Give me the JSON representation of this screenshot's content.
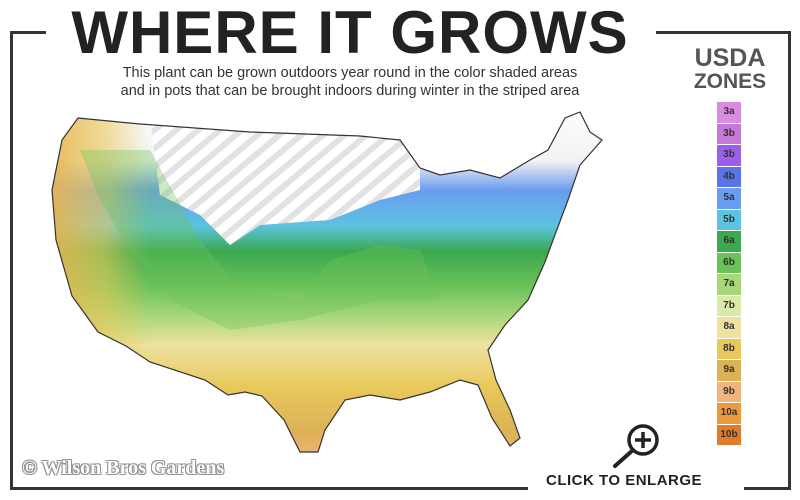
{
  "header": {
    "title": "WHERE IT GROWS",
    "subtitle_line1": "This plant can be grown outdoors year round in the color shaded areas",
    "subtitle_line2": "and in pots that can be brought indoors during winter in the striped area"
  },
  "legend": {
    "title_line1": "USDA",
    "title_line2": "ZONES",
    "zones": [
      {
        "label": "3a",
        "color": "#d98be0"
      },
      {
        "label": "3b",
        "color": "#c47ad6"
      },
      {
        "label": "3b",
        "color": "#9b60e8"
      },
      {
        "label": "4b",
        "color": "#5a73e6"
      },
      {
        "label": "5a",
        "color": "#6a9cf0"
      },
      {
        "label": "5b",
        "color": "#5cc3e0"
      },
      {
        "label": "6a",
        "color": "#3aa84e"
      },
      {
        "label": "6b",
        "color": "#6cc25a"
      },
      {
        "label": "7a",
        "color": "#a8d77a"
      },
      {
        "label": "7b",
        "color": "#dbeaa8"
      },
      {
        "label": "8a",
        "color": "#ede2a0"
      },
      {
        "label": "8b",
        "color": "#e8c85a"
      },
      {
        "label": "9a",
        "color": "#dcb256"
      },
      {
        "label": "9b",
        "color": "#f0b47c"
      },
      {
        "label": "10a",
        "color": "#ec9a3c"
      },
      {
        "label": "10b",
        "color": "#e07c2c"
      }
    ]
  },
  "watermark": "© Wilson Bros Gardens",
  "enlarge": {
    "label": "CLICK TO ENLARGE",
    "icon": "zoom-in-magnifier-icon"
  }
}
